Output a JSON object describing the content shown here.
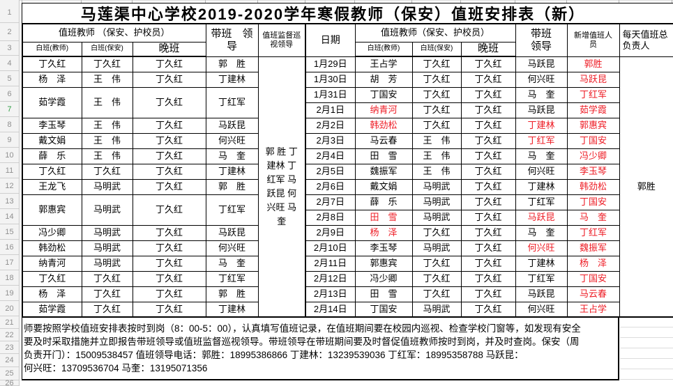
{
  "colors": {
    "red": "#ee1c25",
    "grid_black": "#000000",
    "row_header_bg": "#f3f3f3",
    "row_header_text": "#8f8f8f",
    "active_row_number_green": "#2f9e44"
  },
  "title": "马莲渠中心学校2019-2020学年寒假教师（保安）值班安排表（新）",
  "row_headers": {
    "numbers": [
      1,
      2,
      3,
      4,
      5,
      6,
      7,
      8,
      9,
      10,
      11,
      12,
      13,
      14,
      15,
      16,
      17,
      18,
      19,
      20,
      21,
      22,
      23,
      24,
      25,
      26
    ],
    "active": 7
  },
  "left_table": {
    "group_header": "值班教师 （保安、护校员）",
    "sub_headers": [
      "白班(教师)",
      "白班(保安)",
      "晚班"
    ],
    "daiban_header": "带班　领\n导",
    "supervisor_header": "值班监督巡\n视领导",
    "supervisor_names": "郭 胜 丁建林 丁红军 马跃昆 何兴旺 马 奎",
    "rows": [
      {
        "teacher": "丁久红",
        "guard": "丁久红",
        "night": "丁久红",
        "leader": "郭　胜"
      },
      {
        "teacher": "杨　泽",
        "guard": "王　伟",
        "night": "丁久红",
        "leader": "丁建林"
      },
      {
        "teacher": "茹学霞",
        "guard": "王　伟",
        "night": "丁久红",
        "leader": "丁红军",
        "rows": 2
      },
      {
        "teacher": "李玉琴",
        "guard": "王　伟",
        "night": "丁久红",
        "leader": "马跃昆"
      },
      {
        "teacher": "戴文娟",
        "guard": "王　伟",
        "night": "丁久红",
        "leader": "何兴旺"
      },
      {
        "teacher": "薛　乐",
        "guard": "王　伟",
        "night": "丁久红",
        "leader": "马　奎"
      },
      {
        "teacher": "丁久红",
        "guard": "丁久红",
        "night": "丁久红",
        "leader": "丁建林"
      },
      {
        "teacher": "王龙飞",
        "guard": "马明武",
        "night": "丁久红",
        "leader": "郭　胜"
      },
      {
        "teacher": "郭惠宾",
        "guard": "马明武",
        "night": "丁久红",
        "leader": "丁红军",
        "rows": 2
      },
      {
        "teacher": "冯少卿",
        "guard": "马明武",
        "night": "丁久红",
        "leader": "马跃昆"
      },
      {
        "teacher": "韩劲松",
        "guard": "马明武",
        "night": "丁久红",
        "leader": "何兴旺"
      },
      {
        "teacher": "纳青河",
        "guard": "马明武",
        "night": "丁久红",
        "leader": "马　奎"
      },
      {
        "teacher": "丁久红",
        "guard": "丁久红",
        "night": "丁久红",
        "leader": "丁红军"
      },
      {
        "teacher": "杨　泽",
        "guard": "丁久红",
        "night": "丁久红",
        "leader": "郭　胜"
      },
      {
        "teacher": "茹学霞",
        "guard": "丁久红",
        "night": "丁久红",
        "leader": "丁建林"
      }
    ]
  },
  "right_table": {
    "date_header": "日期",
    "group_header": "值班教师（保安、护校员）",
    "sub_headers": [
      "白班(教师)",
      "白班(保安)",
      "晚班"
    ],
    "daiban_header": "带班\n领导",
    "xinzeng_header": "新增值班人\n员",
    "total_header": "每天值班总\n负责人",
    "total_person": "郭胜",
    "rows": [
      {
        "date": "1月29日",
        "teacher": "王占学",
        "teacher_red": false,
        "guard": "丁久红",
        "night": "丁久红",
        "leader": "马跃昆",
        "leader_red": false,
        "extra": "郭胜"
      },
      {
        "date": "1月30日",
        "teacher": "胡　芳",
        "teacher_red": false,
        "guard": "丁久红",
        "night": "丁久红",
        "leader": "何兴旺",
        "leader_red": false,
        "extra": "马跃昆"
      },
      {
        "date": "1月31日",
        "teacher": "丁国安",
        "teacher_red": false,
        "guard": "丁久红",
        "night": "丁久红",
        "leader": "马　奎",
        "leader_red": false,
        "extra": "丁红军"
      },
      {
        "date": "2月1日",
        "teacher": "纳青河",
        "teacher_red": true,
        "guard": "丁久红",
        "night": "丁久红",
        "leader": "马跃昆",
        "leader_red": false,
        "extra": "茹学霞"
      },
      {
        "date": "2月2日",
        "teacher": "韩劲松",
        "teacher_red": true,
        "guard": "丁久红",
        "night": "丁久红",
        "leader": "丁建林",
        "leader_red": true,
        "extra": "郭惠宾"
      },
      {
        "date": "2月3日",
        "teacher": "马云春",
        "teacher_red": false,
        "guard": "王　伟",
        "night": "丁久红",
        "leader": "丁红军",
        "leader_red": true,
        "extra": "丁国安"
      },
      {
        "date": "2月4日",
        "teacher": "田　雪",
        "teacher_red": false,
        "guard": "王　伟",
        "night": "丁久红",
        "leader": "马　奎",
        "leader_red": false,
        "extra": "冯少卿"
      },
      {
        "date": "2月5日",
        "teacher": "魏振军",
        "teacher_red": false,
        "guard": "王　伟",
        "night": "丁久红",
        "leader": "何兴旺",
        "leader_red": false,
        "extra": "李玉琴"
      },
      {
        "date": "2月6日",
        "teacher": "戴文娟",
        "teacher_red": false,
        "guard": "马明武",
        "night": "丁久红",
        "leader": "丁建林",
        "leader_red": false,
        "extra": "韩劲松"
      },
      {
        "date": "2月7日",
        "teacher": "薛　乐",
        "teacher_red": false,
        "guard": "马明武",
        "night": "丁久红",
        "leader": "丁红军",
        "leader_red": false,
        "extra": "丁国安"
      },
      {
        "date": "2月8日",
        "teacher": "田　雪",
        "teacher_red": true,
        "guard": "马明武",
        "night": "丁久红",
        "leader": "马跃昆",
        "leader_red": true,
        "extra": "马　奎"
      },
      {
        "date": "2月9日",
        "teacher": "杨　泽",
        "teacher_red": true,
        "guard": "丁久红",
        "night": "丁久红",
        "leader": "马　奎",
        "leader_red": false,
        "extra": "丁红军"
      },
      {
        "date": "2月10日",
        "teacher": "李玉琴",
        "teacher_red": false,
        "guard": "马明武",
        "night": "丁久红",
        "leader": "何兴旺",
        "leader_red": true,
        "extra": "魏振军"
      },
      {
        "date": "2月11日",
        "teacher": "郭惠宾",
        "teacher_red": false,
        "guard": "丁久红",
        "night": "丁久红",
        "leader": "丁建林",
        "leader_red": false,
        "extra": "杨　泽"
      },
      {
        "date": "2月12日",
        "teacher": "冯少卿",
        "teacher_red": false,
        "guard": "丁久红",
        "night": "丁久红",
        "leader": "丁红军",
        "leader_red": false,
        "extra": "丁国安"
      },
      {
        "date": "2月13日",
        "teacher": "田　雪",
        "teacher_red": false,
        "guard": "丁久红",
        "night": "丁久红",
        "leader": "马跃昆",
        "leader_red": false,
        "extra": "马云春"
      },
      {
        "date": "2月14日",
        "teacher": "丁国安",
        "teacher_red": false,
        "guard": "马明武",
        "night": "丁久红",
        "leader": "何兴旺",
        "leader_red": false,
        "extra": "王占学"
      }
    ]
  },
  "notes": {
    "lines": [
      "师要按照学校值班安排表按时到岗（8：00-5：00），认真填写值班记录，在值班期间要在校园内巡视、检查学校门窗等，如发现有安全",
      "要及时采取措施并立即报告带班领导或值班监督巡视领导。带班领导在带班期间要及时督促值班教师按时到岗，并及时查岗。保安（周",
      "负责开门）：15009538457  值班领导电话：郭胜：18995386866 丁建林：13239539036 丁红军：18995358788  马跃昆：",
      "何兴旺：13709536704 马奎：13195071356"
    ]
  }
}
